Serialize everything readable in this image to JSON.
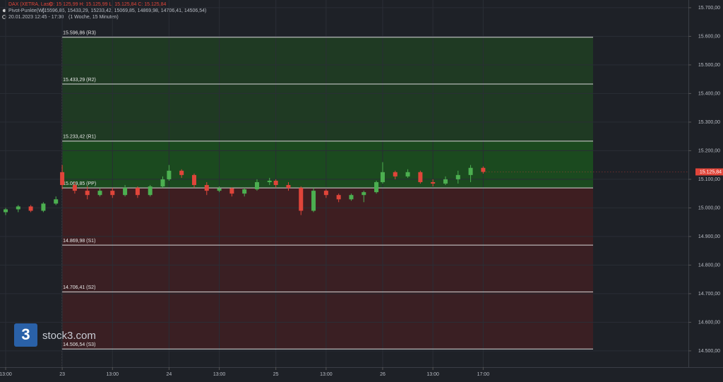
{
  "header": {
    "instrument": "DAX (XETRA, Last)",
    "ohlc": "O: 15.125,99  H: 15.125,99  L: 15.125,84  C: 15.125,84",
    "indicator": "Pivot-Punkte(W)",
    "indicator_values": "(15596,86, 15433,29, 15233,42, 15069,85, 14869,98, 14706,41, 14506,54)",
    "period": "20.01.2023 12:45 - 17:30",
    "interval": "(1 Woche, 15 Minuten)"
  },
  "logo": "stock3.com",
  "chart_data": {
    "type": "candlestick",
    "up_color": "#4caf50",
    "down_color": "#e0453a",
    "x": [
      4,
      5,
      6,
      7,
      8,
      8.5,
      9.5,
      10.5,
      11.5,
      12.5,
      13.5,
      14.5,
      15.5,
      16.5,
      17,
      18,
      19,
      20,
      21,
      22,
      23,
      24,
      25,
      25.5,
      26.5,
      27.5,
      28.5,
      29.5,
      30.5,
      31.5,
      32.5,
      33.5,
      34,
      35,
      36,
      37,
      38,
      39,
      40,
      41,
      42
    ],
    "open": [
      14985,
      14995,
      15005,
      14990,
      15015,
      15125,
      15080,
      15060,
      15045,
      15060,
      15045,
      15070,
      15045,
      15075,
      15100,
      15130,
      15115,
      15080,
      15060,
      15068,
      15050,
      15065,
      15090,
      15095,
      15080,
      15070,
      14990,
      15060,
      15045,
      15030,
      15045,
      15055,
      15090,
      15125,
      15110,
      15125,
      15090,
      15085,
      15100,
      15115,
      15140
    ],
    "high": [
      15000,
      15010,
      15010,
      15020,
      15040,
      15150,
      15090,
      15075,
      15070,
      15070,
      15080,
      15075,
      15080,
      15110,
      15150,
      15135,
      15120,
      15090,
      15075,
      15072,
      15070,
      15100,
      15105,
      15100,
      15090,
      15075,
      15070,
      15065,
      15050,
      15050,
      15060,
      15095,
      15160,
      15130,
      15135,
      15130,
      15100,
      15110,
      15130,
      15150,
      15145
    ],
    "low": [
      14975,
      14985,
      14985,
      14985,
      15010,
      15065,
      15050,
      15030,
      15040,
      15035,
      15040,
      15035,
      15040,
      15070,
      15095,
      15105,
      15070,
      15045,
      15055,
      15040,
      15040,
      15060,
      15080,
      15070,
      15060,
      14975,
      14985,
      15035,
      15020,
      15025,
      15020,
      15050,
      15085,
      15100,
      15105,
      15085,
      15075,
      15080,
      15085,
      15090,
      15120
    ],
    "close": [
      14995,
      15005,
      14990,
      15015,
      15030,
      15080,
      15060,
      15045,
      15060,
      15045,
      15070,
      15045,
      15075,
      15100,
      15130,
      15115,
      15080,
      15060,
      15068,
      15050,
      15065,
      15090,
      15095,
      15080,
      15070,
      14990,
      15060,
      15045,
      15030,
      15045,
      15055,
      15090,
      15125,
      15110,
      15125,
      15090,
      15085,
      15100,
      15115,
      15140,
      15125.84
    ],
    "last_price": {
      "value": 15125.84,
      "label": "15.125,84"
    },
    "pivots": [
      {
        "value": 15596.86,
        "label": "15.596,86 (R3)"
      },
      {
        "value": 15433.29,
        "label": "15.433,29 (R2)"
      },
      {
        "value": 15233.42,
        "label": "15.233,42 (R1)"
      },
      {
        "value": 15069.85,
        "label": "15.069,85 (PP)"
      },
      {
        "value": 14869.98,
        "label": "14.869,98 (S1)"
      },
      {
        "value": 14706.41,
        "label": "14.706,41 (S2)"
      },
      {
        "value": 14506.54,
        "label": "14.506,54 (S3)"
      }
    ],
    "xlim": [
      3.55,
      58.33
    ],
    "xticks": [
      {
        "value": 4,
        "label": "13:00"
      },
      {
        "value": 8.5,
        "label": "23"
      },
      {
        "value": 12.5,
        "label": "13:00"
      },
      {
        "value": 17,
        "label": "24"
      },
      {
        "value": 21,
        "label": "13:00"
      },
      {
        "value": 25.5,
        "label": "25"
      },
      {
        "value": 29.5,
        "label": "13:00"
      },
      {
        "value": 34,
        "label": "26"
      },
      {
        "value": 38,
        "label": "13:00"
      },
      {
        "value": 42,
        "label": "17:00"
      }
    ],
    "ylim": [
      14443,
      15727
    ],
    "yticks": [
      {
        "value": 14500,
        "label": "14.500,00"
      },
      {
        "value": 14600,
        "label": "14.600,00"
      },
      {
        "value": 14700,
        "label": "14.700,00"
      },
      {
        "value": 14800,
        "label": "14.800,00"
      },
      {
        "value": 14900,
        "label": "14.900,00"
      },
      {
        "value": 15000,
        "label": "15.000,00"
      },
      {
        "value": 15100,
        "label": "15.100,00"
      },
      {
        "value": 15200,
        "label": "15.200,00"
      },
      {
        "value": 15300,
        "label": "15.300,00"
      },
      {
        "value": 15400,
        "label": "15.400,00"
      },
      {
        "value": 15500,
        "label": "15.500,00"
      },
      {
        "value": 15600,
        "label": "15.600,00"
      },
      {
        "value": 15700,
        "label": "15.700,00"
      }
    ],
    "grid": true
  }
}
